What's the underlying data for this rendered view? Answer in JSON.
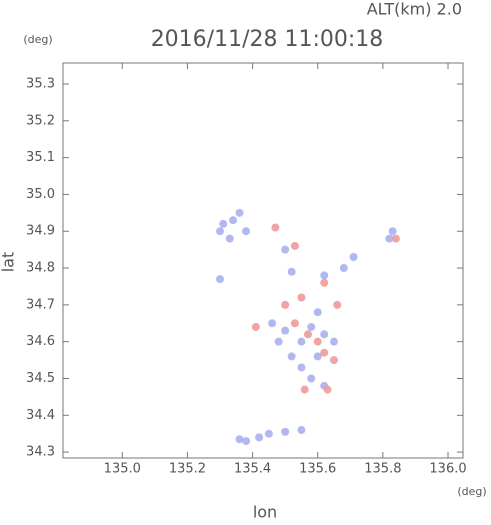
{
  "chart_data": {
    "type": "scatter",
    "title": "2016/11/28 11:00:18",
    "altitude_label": "ALT(km) 2.0",
    "y_unit": "(deg)",
    "x_unit": "(deg)",
    "xlabel": "lon",
    "ylabel": "lat",
    "xlim": [
      134.818,
      136.046
    ],
    "ylim": [
      34.284,
      35.357
    ],
    "xticks": [
      {
        "value": 135,
        "label": "135.0"
      },
      135.2,
      135.4,
      135.6,
      135.8,
      {
        "value": 136,
        "label": "136.0"
      }
    ],
    "yticks": [
      34.3,
      34.4,
      34.5,
      34.6,
      34.7,
      34.8,
      34.9,
      {
        "value": 35,
        "label": "35.0"
      },
      35.1,
      35.2,
      35.3
    ],
    "series": [
      {
        "color": "#a9b0ee",
        "x": [
          135.31,
          135.34,
          135.36,
          135.38,
          135.33,
          135.3,
          135.5,
          135.62,
          135.68,
          135.82,
          135.83,
          135.46,
          135.5,
          135.55,
          135.58,
          135.6,
          135.62,
          135.52,
          135.6,
          135.58,
          135.62,
          135.55,
          135.65,
          135.48,
          135.45,
          135.5,
          135.55,
          135.42,
          135.38,
          135.36,
          135.3,
          135.52,
          135.71
        ],
        "y": [
          34.92,
          34.93,
          34.95,
          34.9,
          34.88,
          34.9,
          34.85,
          34.78,
          34.8,
          34.88,
          34.9,
          34.65,
          34.63,
          34.6,
          34.64,
          34.68,
          34.62,
          34.56,
          34.56,
          34.5,
          34.48,
          34.53,
          34.6,
          34.6,
          34.35,
          34.355,
          34.36,
          34.34,
          34.33,
          34.335,
          34.77,
          34.79,
          34.83
        ]
      },
      {
        "color": "#ee9a9a",
        "x": [
          135.47,
          135.53,
          135.62,
          135.53,
          135.6,
          135.62,
          135.57,
          135.65,
          135.63,
          135.56,
          135.41,
          135.66,
          135.84,
          135.55,
          135.5
        ],
        "y": [
          34.91,
          34.86,
          34.76,
          34.65,
          34.6,
          34.57,
          34.62,
          34.55,
          34.47,
          34.47,
          34.64,
          34.7,
          34.88,
          34.72,
          34.7
        ]
      }
    ]
  }
}
